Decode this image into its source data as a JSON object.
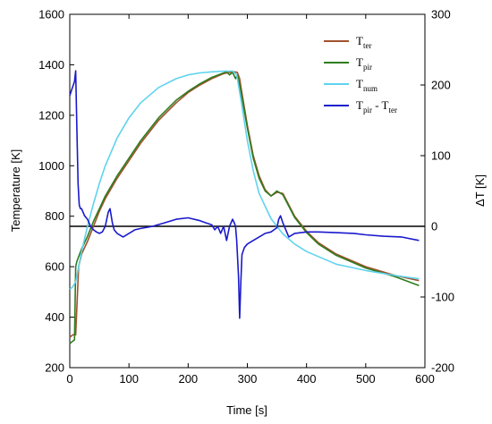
{
  "chart_data": {
    "type": "line",
    "xlabel": "Time [s]",
    "ylabel_left": "Temperature [K]",
    "ylabel_right": "ΔT [K]",
    "xlim": [
      0,
      600
    ],
    "ylim_left": [
      200,
      1600
    ],
    "ylim_right": [
      -200,
      300
    ],
    "xticks": [
      0,
      100,
      200,
      300,
      400,
      500,
      600
    ],
    "yticks_left": [
      200,
      400,
      600,
      800,
      1000,
      1200,
      1400,
      1600
    ],
    "yticks_right": [
      -200,
      -100,
      0,
      100,
      200,
      300
    ],
    "reference_line_right": 0,
    "legend_position": "top-right",
    "legend": [
      {
        "main": "T",
        "sub": "ter"
      },
      {
        "main": "T",
        "sub": "pir"
      },
      {
        "main": "T",
        "sub": "num"
      },
      {
        "main": "T",
        "sub": "pir",
        "suffix": " - T",
        "sub2": "ter"
      }
    ],
    "series": [
      {
        "axis": "left",
        "color": "#a0522d",
        "x": [
          0,
          5,
          10,
          15,
          20,
          30,
          40,
          50,
          60,
          70,
          80,
          100,
          120,
          150,
          180,
          200,
          220,
          240,
          260,
          270,
          278,
          283,
          287,
          290,
          300,
          310,
          320,
          330,
          340,
          350,
          360,
          370,
          380,
          400,
          420,
          450,
          500,
          550,
          590
        ],
        "y": [
          320,
          330,
          330,
          600,
          650,
          700,
          760,
          820,
          870,
          910,
          950,
          1020,
          1090,
          1180,
          1250,
          1290,
          1320,
          1345,
          1365,
          1370,
          1372,
          1370,
          1345,
          1300,
          1160,
          1040,
          960,
          905,
          880,
          895,
          890,
          845,
          800,
          740,
          695,
          650,
          600,
          565,
          545
        ]
      },
      {
        "axis": "left",
        "color": "#2e7d1e",
        "x": [
          0,
          5,
          8,
          10,
          12,
          15,
          20,
          30,
          40,
          50,
          60,
          70,
          80,
          100,
          120,
          150,
          180,
          200,
          220,
          240,
          260,
          265,
          270,
          275,
          280,
          283,
          287,
          290,
          300,
          310,
          320,
          330,
          340,
          350,
          360,
          370,
          380,
          400,
          420,
          450,
          500,
          550,
          590
        ],
        "y": [
          295,
          305,
          310,
          600,
          620,
          640,
          670,
          720,
          780,
          830,
          880,
          920,
          960,
          1030,
          1100,
          1190,
          1260,
          1295,
          1325,
          1350,
          1368,
          1372,
          1360,
          1370,
          1345,
          1360,
          1320,
          1280,
          1150,
          1030,
          950,
          900,
          880,
          900,
          885,
          840,
          795,
          735,
          690,
          645,
          595,
          560,
          525
        ]
      },
      {
        "axis": "left",
        "color": "#5fd3ee",
        "x": [
          0,
          5,
          10,
          15,
          20,
          30,
          40,
          50,
          60,
          80,
          100,
          120,
          150,
          180,
          200,
          220,
          240,
          260,
          275,
          282,
          290,
          300,
          310,
          320,
          340,
          360,
          380,
          400,
          450,
          500,
          550,
          590
        ],
        "y": [
          510,
          520,
          540,
          600,
          660,
          760,
          850,
          930,
          1000,
          1110,
          1190,
          1250,
          1310,
          1345,
          1360,
          1368,
          1372,
          1375,
          1375,
          1360,
          1250,
          1100,
          980,
          890,
          790,
          730,
          690,
          660,
          610,
          585,
          565,
          552
        ]
      },
      {
        "axis": "right",
        "color": "#1a1acc",
        "x": [
          0,
          2,
          4,
          6,
          8,
          10,
          12,
          14,
          16,
          18,
          20,
          25,
          30,
          35,
          40,
          45,
          50,
          55,
          60,
          65,
          68,
          72,
          75,
          80,
          90,
          100,
          110,
          120,
          140,
          160,
          180,
          200,
          220,
          230,
          240,
          245,
          250,
          255,
          260,
          265,
          270,
          275,
          278,
          280,
          282,
          285,
          287,
          289,
          291,
          295,
          300,
          310,
          320,
          330,
          340,
          345,
          350,
          353,
          356,
          360,
          365,
          370,
          380,
          400,
          420,
          450,
          480,
          500,
          530,
          560,
          590
        ],
        "y": [
          185,
          190,
          195,
          200,
          205,
          220,
          140,
          60,
          30,
          25,
          25,
          15,
          10,
          0,
          -5,
          -8,
          -10,
          -8,
          0,
          20,
          25,
          5,
          -5,
          -10,
          -15,
          -10,
          -5,
          -3,
          0,
          5,
          10,
          12,
          8,
          5,
          2,
          -5,
          0,
          -10,
          0,
          -20,
          0,
          10,
          5,
          0,
          -20,
          -70,
          -130,
          -80,
          -40,
          -30,
          -25,
          -20,
          -15,
          -10,
          -8,
          -5,
          -2,
          10,
          15,
          5,
          -5,
          -15,
          -10,
          -8,
          -8,
          -9,
          -10,
          -12,
          -14,
          -15,
          -20
        ]
      }
    ]
  }
}
